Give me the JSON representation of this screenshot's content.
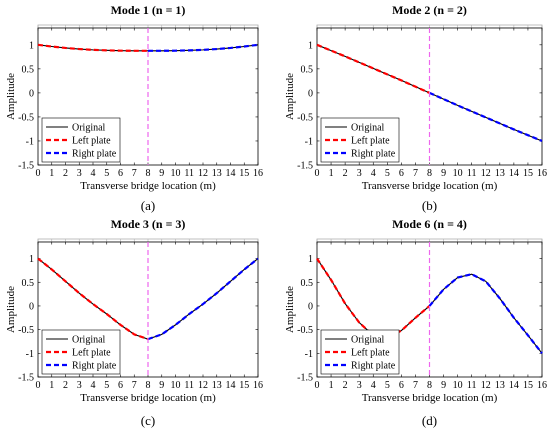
{
  "panels": [
    {
      "id": "a",
      "caption": "(a)",
      "chart_data": {
        "type": "line",
        "title": "Mode 1 (n = 1)",
        "xlabel": "Transverse bridge location (m)",
        "ylabel": "Amplitude",
        "xlim": [
          0,
          16
        ],
        "ylim": [
          -1.5,
          1.35
        ],
        "xticks": [
          "0",
          "1",
          "2",
          "3",
          "4",
          "5",
          "6",
          "7",
          "8",
          "9",
          "10",
          "11",
          "12",
          "13",
          "14",
          "15",
          "16"
        ],
        "yticks": [
          "1",
          "0.5",
          "0",
          "-0.5",
          "-1",
          "-1.5"
        ],
        "reference_line_x": 8,
        "legend": {
          "position": "bottom-left",
          "entries": [
            "Original",
            "Left plate",
            "Right plate"
          ]
        },
        "series": [
          {
            "name": "Original",
            "color": "#000000",
            "style": "solid",
            "x": [
              0,
              1,
              2,
              3,
              4,
              5,
              6,
              7,
              8,
              9,
              10,
              11,
              12,
              13,
              14,
              15,
              16
            ],
            "y": [
              1.0,
              0.965,
              0.935,
              0.912,
              0.895,
              0.885,
              0.878,
              0.876,
              0.875,
              0.876,
              0.878,
              0.885,
              0.895,
              0.912,
              0.935,
              0.965,
              1.0
            ]
          },
          {
            "name": "Left plate",
            "color": "#ff0000",
            "style": "dashed",
            "x": [
              0,
              1,
              2,
              3,
              4,
              5,
              6,
              7,
              8
            ],
            "y": [
              1.0,
              0.965,
              0.935,
              0.912,
              0.895,
              0.885,
              0.878,
              0.876,
              0.875
            ]
          },
          {
            "name": "Right plate",
            "color": "#0000ff",
            "style": "dashed",
            "x": [
              8,
              9,
              10,
              11,
              12,
              13,
              14,
              15,
              16
            ],
            "y": [
              0.875,
              0.876,
              0.878,
              0.885,
              0.895,
              0.912,
              0.935,
              0.965,
              1.0
            ]
          }
        ]
      }
    },
    {
      "id": "b",
      "caption": "(b)",
      "chart_data": {
        "type": "line",
        "title": "Mode 2 (n = 2)",
        "xlabel": "Transverse bridge location (m)",
        "ylabel": "Amplitude",
        "xlim": [
          0,
          16
        ],
        "ylim": [
          -1.5,
          1.35
        ],
        "xticks": [
          "0",
          "1",
          "2",
          "3",
          "4",
          "5",
          "6",
          "7",
          "8",
          "9",
          "10",
          "11",
          "12",
          "13",
          "14",
          "15",
          "16"
        ],
        "yticks": [
          "1",
          "0.5",
          "0",
          "-0.5",
          "-1",
          "-1.5"
        ],
        "reference_line_x": 8,
        "legend": {
          "position": "bottom-left",
          "entries": [
            "Original",
            "Left plate",
            "Right plate"
          ]
        },
        "series": [
          {
            "name": "Original",
            "color": "#000000",
            "style": "solid",
            "x": [
              0,
              1,
              2,
              3,
              4,
              5,
              6,
              7,
              8,
              9,
              10,
              11,
              12,
              13,
              14,
              15,
              16
            ],
            "y": [
              1.0,
              0.88,
              0.76,
              0.635,
              0.51,
              0.385,
              0.26,
              0.13,
              0.0,
              -0.13,
              -0.26,
              -0.385,
              -0.51,
              -0.635,
              -0.76,
              -0.88,
              -1.0
            ]
          },
          {
            "name": "Left plate",
            "color": "#ff0000",
            "style": "dashed",
            "x": [
              0,
              1,
              2,
              3,
              4,
              5,
              6,
              7,
              8
            ],
            "y": [
              1.0,
              0.88,
              0.76,
              0.635,
              0.51,
              0.385,
              0.26,
              0.13,
              0.0
            ]
          },
          {
            "name": "Right plate",
            "color": "#0000ff",
            "style": "dashed",
            "x": [
              8,
              9,
              10,
              11,
              12,
              13,
              14,
              15,
              16
            ],
            "y": [
              0.0,
              -0.13,
              -0.26,
              -0.385,
              -0.51,
              -0.635,
              -0.76,
              -0.88,
              -1.0
            ]
          }
        ]
      }
    },
    {
      "id": "c",
      "caption": "(c)",
      "chart_data": {
        "type": "line",
        "title": "Mode 3 (n = 3)",
        "xlabel": "Transverse bridge location (m)",
        "ylabel": "Amplitude",
        "xlim": [
          0,
          16
        ],
        "ylim": [
          -1.5,
          1.35
        ],
        "xticks": [
          "0",
          "1",
          "2",
          "3",
          "4",
          "5",
          "6",
          "7",
          "8",
          "9",
          "10",
          "11",
          "12",
          "13",
          "14",
          "15",
          "16"
        ],
        "yticks": [
          "1",
          "0.5",
          "0",
          "-0.5",
          "-1",
          "-1.5"
        ],
        "reference_line_x": 8,
        "legend": {
          "position": "bottom-left",
          "entries": [
            "Original",
            "Left plate",
            "Right plate"
          ]
        },
        "series": [
          {
            "name": "Original",
            "color": "#000000",
            "style": "solid",
            "x": [
              0,
              1,
              2,
              3,
              4,
              5,
              6,
              7,
              8,
              9,
              10,
              11,
              12,
              13,
              14,
              15,
              16
            ],
            "y": [
              1.0,
              0.77,
              0.52,
              0.27,
              0.04,
              -0.17,
              -0.4,
              -0.6,
              -0.7,
              -0.6,
              -0.4,
              -0.17,
              0.04,
              0.27,
              0.52,
              0.77,
              1.0
            ]
          },
          {
            "name": "Left plate",
            "color": "#ff0000",
            "style": "dashed",
            "x": [
              0,
              1,
              2,
              3,
              4,
              5,
              6,
              7,
              8
            ],
            "y": [
              1.0,
              0.77,
              0.52,
              0.27,
              0.04,
              -0.17,
              -0.4,
              -0.6,
              -0.7
            ]
          },
          {
            "name": "Right plate",
            "color": "#0000ff",
            "style": "dashed",
            "x": [
              8,
              9,
              10,
              11,
              12,
              13,
              14,
              15,
              16
            ],
            "y": [
              -0.7,
              -0.6,
              -0.4,
              -0.17,
              0.04,
              0.27,
              0.52,
              0.77,
              1.0
            ]
          }
        ]
      }
    },
    {
      "id": "d",
      "caption": "(d)",
      "chart_data": {
        "type": "line",
        "title": "Mode 6 (n = 4)",
        "xlabel": "Transverse bridge location (m)",
        "ylabel": "Amplitude",
        "xlim": [
          0,
          16
        ],
        "ylim": [
          -1.5,
          1.35
        ],
        "xticks": [
          "0",
          "1",
          "2",
          "3",
          "4",
          "5",
          "6",
          "7",
          "8",
          "9",
          "10",
          "11",
          "12",
          "13",
          "14",
          "15",
          "16"
        ],
        "yticks": [
          "1",
          "0.5",
          "0",
          "-0.5",
          "-1",
          "-1.5"
        ],
        "reference_line_x": 8,
        "legend": {
          "position": "bottom-left",
          "entries": [
            "Original",
            "Left plate",
            "Right plate"
          ]
        },
        "series": [
          {
            "name": "Original",
            "color": "#000000",
            "style": "solid",
            "x": [
              0,
              1,
              2,
              3,
              4,
              5,
              6,
              7,
              8,
              9,
              10,
              11,
              12,
              13,
              14,
              15,
              16
            ],
            "y": [
              1.0,
              0.55,
              0.05,
              -0.35,
              -0.62,
              -0.67,
              -0.52,
              -0.25,
              0.0,
              0.35,
              0.6,
              0.67,
              0.52,
              0.16,
              -0.25,
              -0.62,
              -1.0
            ]
          },
          {
            "name": "Left plate",
            "color": "#ff0000",
            "style": "dashed",
            "x": [
              0,
              1,
              2,
              3,
              4,
              5,
              6,
              7,
              8
            ],
            "y": [
              1.0,
              0.55,
              0.05,
              -0.35,
              -0.62,
              -0.67,
              -0.52,
              -0.25,
              0.0
            ]
          },
          {
            "name": "Right plate",
            "color": "#0000ff",
            "style": "dashed",
            "x": [
              8,
              9,
              10,
              11,
              12,
              13,
              14,
              15,
              16
            ],
            "y": [
              0.0,
              0.35,
              0.6,
              0.67,
              0.52,
              0.16,
              -0.25,
              -0.62,
              -1.0
            ]
          }
        ]
      }
    }
  ],
  "colors": {
    "reference_line": "#ee66ee",
    "deck": "#b0b0b0"
  }
}
